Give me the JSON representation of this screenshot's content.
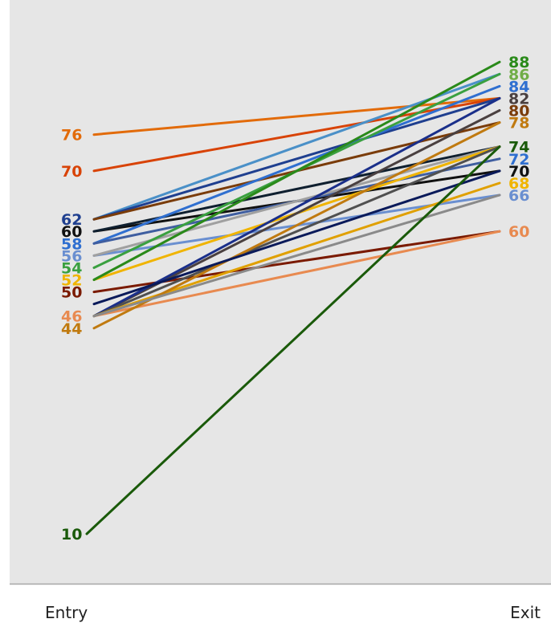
{
  "chart_data": {
    "type": "slope",
    "title": "",
    "x": [
      "Entry",
      "Exit"
    ],
    "ylim": [
      0,
      100
    ],
    "grid": false,
    "legend": "none",
    "colors": {
      "background": "#e6e6e6",
      "axis": "#a6a6a6",
      "series_palette": [
        "#c55a11",
        "#c00000",
        "#2e75b6",
        "#1f4e79",
        "#000000",
        "#4472c4",
        "#a5a5a5",
        "#70ad47",
        "#ffc000",
        "#7b2c00",
        "#f4b183",
        "#bf9000",
        "#548235",
        "#7f7f7f",
        "#375623",
        "#ed7d31",
        "#003366",
        "#5b9bd5",
        "#843c0c",
        "#595959",
        "#0070c0",
        "#00b050",
        "#002060",
        "#ffb000",
        "#3a5e9e"
      ]
    },
    "series": [
      {
        "values": [
          76,
          82
        ],
        "color": "#e26b0a"
      },
      {
        "values": [
          70,
          82
        ],
        "color": "#d84307"
      },
      {
        "values": [
          62,
          86
        ],
        "color": "#4a90c8"
      },
      {
        "values": [
          62,
          82
        ],
        "color": "#1f3f8f"
      },
      {
        "values": [
          62,
          78
        ],
        "color": "#7a3c0a"
      },
      {
        "values": [
          60,
          70
        ],
        "color": "#111111"
      },
      {
        "values": [
          60,
          74
        ],
        "color": "#0f1f2f"
      },
      {
        "values": [
          58,
          84
        ],
        "color": "#2f6fd0"
      },
      {
        "values": [
          58,
          72
        ],
        "color": "#3f5ea0"
      },
      {
        "values": [
          56,
          66
        ],
        "color": "#6a8fd0"
      },
      {
        "values": [
          56,
          74
        ],
        "color": "#a0a0a0"
      },
      {
        "values": [
          54,
          86
        ],
        "color": "#3aa040"
      },
      {
        "values": [
          52,
          74
        ],
        "color": "#f0b400"
      },
      {
        "values": [
          50,
          60
        ],
        "color": "#7a1a00"
      },
      {
        "values": [
          46,
          80
        ],
        "color": "#4a4040"
      },
      {
        "values": [
          46,
          60
        ],
        "color": "#e88a50"
      },
      {
        "values": [
          46,
          82
        ],
        "color": "#1a2f8a"
      },
      {
        "values": [
          46,
          74
        ],
        "color": "#505050"
      },
      {
        "values": [
          46,
          68
        ],
        "color": "#e0a000"
      },
      {
        "values": [
          44,
          78
        ],
        "color": "#c07a10"
      },
      {
        "values": [
          48,
          70
        ],
        "color": "#0a1a5a"
      },
      {
        "values": [
          46,
          66
        ],
        "color": "#8a8a8a"
      },
      {
        "values": [
          52,
          88
        ],
        "color": "#2a8a1a"
      },
      {
        "values": [
          10,
          74
        ],
        "color": "#1a5a0a"
      }
    ],
    "entry_labels": [
      {
        "text": "76",
        "value": 76,
        "color": "#e26b0a"
      },
      {
        "text": "70",
        "value": 70,
        "color": "#d84307"
      },
      {
        "text": "62",
        "value": 62,
        "color": "#1f3f8f"
      },
      {
        "text": "60",
        "value": 60,
        "color": "#111111"
      },
      {
        "text": "58",
        "value": 58,
        "color": "#2f6fd0"
      },
      {
        "text": "56",
        "value": 56,
        "color": "#6a8fd0"
      },
      {
        "text": "54",
        "value": 54,
        "color": "#3aa040"
      },
      {
        "text": "52",
        "value": 52,
        "color": "#f0b400"
      },
      {
        "text": "50",
        "value": 50,
        "color": "#7a1a00"
      },
      {
        "text": "46",
        "value": 46,
        "color": "#e88a50"
      },
      {
        "text": "44",
        "value": 44,
        "color": "#c07a10"
      },
      {
        "text": "10",
        "value": 10,
        "color": "#1a5a0a"
      }
    ],
    "exit_labels": [
      {
        "text": "88",
        "value": 88,
        "color": "#2a8a1a"
      },
      {
        "text": "86",
        "value": 86,
        "color": "#70ad47"
      },
      {
        "text": "84",
        "value": 84,
        "color": "#2f6fd0"
      },
      {
        "text": "82",
        "value": 82,
        "color": "#4a4040"
      },
      {
        "text": "80",
        "value": 80,
        "color": "#7a3c0a"
      },
      {
        "text": "78",
        "value": 78,
        "color": "#c07a10"
      },
      {
        "text": "74",
        "value": 74,
        "color": "#1a5a0a"
      },
      {
        "text": "72",
        "value": 72,
        "color": "#2f6fd0"
      },
      {
        "text": "70",
        "value": 70,
        "color": "#111111"
      },
      {
        "text": "68",
        "value": 68,
        "color": "#f0b400"
      },
      {
        "text": "66",
        "value": 66,
        "color": "#6a8fd0"
      },
      {
        "text": "60",
        "value": 60,
        "color": "#e88a50"
      }
    ]
  }
}
